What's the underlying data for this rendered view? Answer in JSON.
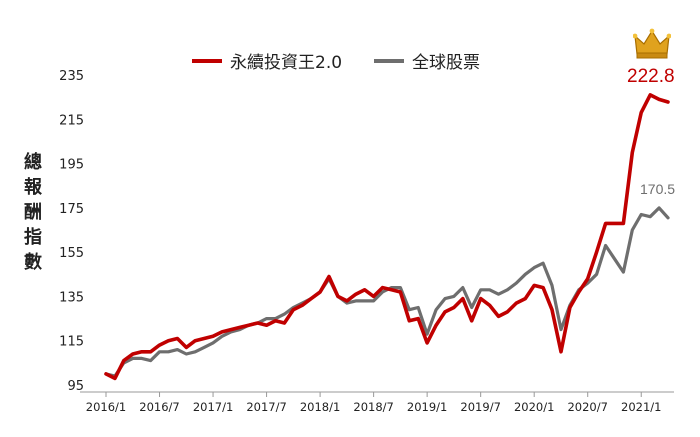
{
  "chart_data": {
    "type": "line",
    "title": "",
    "xlabel": "",
    "ylabel": "總報酬指數",
    "ylim": [
      95,
      235
    ],
    "yticks": [
      95,
      115,
      135,
      155,
      175,
      195,
      215,
      235
    ],
    "x_tick_labels": [
      "2016/1",
      "2016/7",
      "2017/1",
      "2017/7",
      "2018/1",
      "2018/7",
      "2019/1",
      "2019/7",
      "2020/1",
      "2020/7",
      "2021/1"
    ],
    "x_start": "2016/1",
    "legend_position": "top-center",
    "series": [
      {
        "name": "永續投資王2.0",
        "color": "#c00000",
        "end_label": "222.8",
        "values": [
          100,
          98,
          106,
          109,
          110,
          110,
          113,
          115,
          116,
          112,
          115,
          116,
          117,
          119,
          120,
          121,
          122,
          123,
          122,
          124,
          123,
          129,
          131,
          134,
          137,
          144,
          135,
          133,
          136,
          138,
          135,
          139,
          138,
          137,
          124,
          125,
          114,
          122,
          128,
          130,
          134,
          124,
          134,
          131,
          126,
          128,
          132,
          134,
          140,
          139,
          129,
          110,
          130,
          137,
          143,
          155,
          168,
          168,
          168,
          200,
          218,
          226,
          224,
          222.8
        ]
      },
      {
        "name": "全球股票",
        "color": "#6e6e6e",
        "end_label": "170.5",
        "values": [
          100,
          99,
          105,
          107,
          107,
          106,
          110,
          110,
          111,
          109,
          110,
          112,
          114,
          117,
          119,
          120,
          122,
          123,
          125,
          125,
          127,
          130,
          132,
          134,
          137,
          143,
          135,
          132,
          133,
          133,
          133,
          137,
          139,
          139,
          129,
          130,
          118,
          129,
          134,
          135,
          139,
          130,
          138,
          138,
          136,
          138,
          141,
          145,
          148,
          150,
          140,
          120,
          131,
          138,
          141,
          145,
          158,
          152,
          146,
          165,
          172,
          171,
          175,
          170.5
        ]
      }
    ]
  }
}
